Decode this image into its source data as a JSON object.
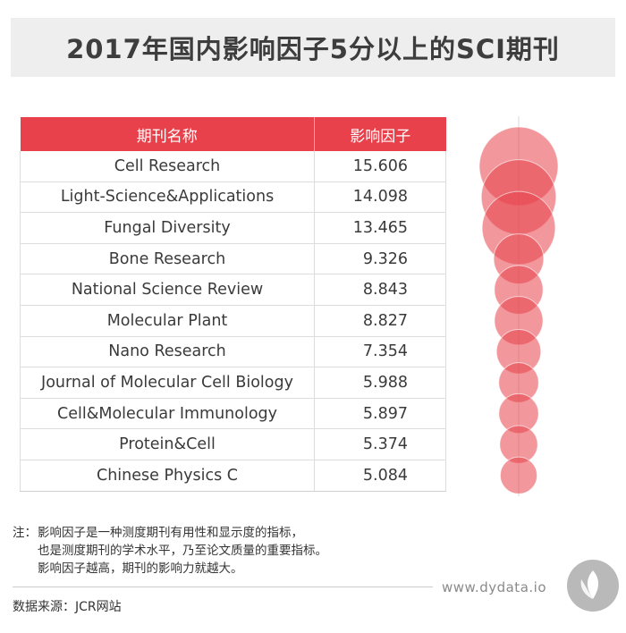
{
  "title": "2017年国内影响因子5分以上的SCI期刊",
  "chart_data": {
    "type": "table",
    "columns": [
      "期刊名称",
      "影响因子"
    ],
    "rows": [
      {
        "name": "Cell Research",
        "value": 15.606
      },
      {
        "name": "Light-Science&Applications",
        "value": 14.098
      },
      {
        "name": "Fungal Diversity",
        "value": 13.465
      },
      {
        "name": "Bone Research",
        "value": 9.326
      },
      {
        "name": "National Science Review",
        "value": 8.843
      },
      {
        "name": "Molecular Plant",
        "value": 8.827
      },
      {
        "name": "Nano Research",
        "value": 7.354
      },
      {
        "name": "Journal of Molecular Cell Biology",
        "value": 5.988
      },
      {
        "name": "Cell&Molecular Immunology",
        "value": 5.897
      },
      {
        "name": "Protein&Cell",
        "value": 5.374
      },
      {
        "name": "Chinese Physics C",
        "value": 5.084
      }
    ],
    "bubble_color": "#e8414b",
    "header_color": "#e8414b"
  },
  "note": {
    "prefix": "注：",
    "lines": [
      "影响因子是一种测度期刊有用性和显示度的指标，",
      "也是测度期刊的学术水平，乃至论文质量的重要指标。",
      "影响因子越高，期刊的影响力就越大。"
    ]
  },
  "source": "数据来源：JCR网站",
  "website": "www.dydata.io"
}
